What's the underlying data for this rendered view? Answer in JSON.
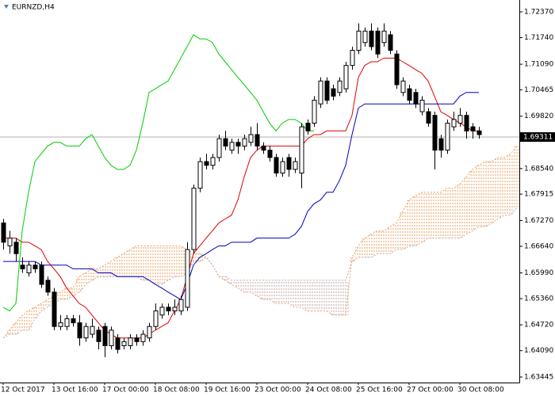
{
  "chart_data": {
    "type": "candlestick",
    "title": "EURNZD,H4",
    "categories": [
      "12 Oct 2017",
      null,
      null,
      null,
      null,
      null,
      null,
      null,
      "13 Oct 16:00",
      null,
      null,
      null,
      null,
      null,
      null,
      null,
      "17 Oct 00:00",
      null,
      null,
      null,
      null,
      null,
      null,
      null,
      "18 Oct 08:00",
      null,
      null,
      null,
      null,
      null,
      null,
      null,
      "19 Oct 16:00",
      null,
      null,
      null,
      null,
      null,
      null,
      null,
      "23 Oct 00:00",
      null,
      null,
      null,
      null,
      null,
      null,
      null,
      "24 Oct 08:00",
      null,
      null,
      null,
      null,
      null,
      null,
      null,
      "25 Oct 16:00",
      null,
      null,
      null,
      null,
      null,
      null,
      null,
      "27 Oct 00:00",
      null,
      null,
      null,
      null,
      null,
      null,
      null,
      "30 Oct 08:00",
      null,
      null,
      null,
      null,
      null,
      null,
      null,
      null,
      null
    ],
    "open": [
      1.6721,
      1.6665,
      1.6674,
      1.6618,
      1.6599,
      1.6618,
      1.6618,
      1.6581,
      1.6552,
      1.6468,
      1.6468,
      1.6487,
      1.6477,
      1.644,
      1.6449,
      1.6459,
      1.6468,
      1.6421,
      1.644,
      1.6421,
      1.6421,
      1.644,
      1.6431,
      1.644,
      1.6468,
      1.6496,
      1.6515,
      1.6506,
      1.6506,
      1.6515,
      1.6656,
      1.6806,
      1.6871,
      1.6862,
      1.6881,
      1.6927,
      1.6899,
      1.6918,
      1.6909,
      1.6918,
      1.6937,
      1.6909,
      1.6899,
      1.6881,
      1.6843,
      1.6881,
      1.6852,
      1.6843,
      1.6965,
      1.6965,
      1.7012,
      1.7068,
      1.7049,
      1.704,
      1.7049,
      1.7106,
      1.7143,
      1.7162,
      1.719,
      1.719,
      1.7162,
      1.7181,
      1.7134,
      1.704,
      1.7049,
      1.704,
      1.6993,
      1.6993,
      1.6984,
      1.6927,
      1.6899,
      1.6956,
      1.6965,
      1.6984,
      1.6956,
      1.6946,
      null,
      null,
      null,
      null,
      null,
      null
    ],
    "high": [
      1.6731,
      1.6702,
      1.6684,
      1.6637,
      1.6627,
      1.6627,
      1.6627,
      1.659,
      1.6562,
      1.6496,
      1.6496,
      1.6496,
      1.6496,
      1.6477,
      1.6487,
      1.6468,
      1.6477,
      1.6468,
      1.6449,
      1.644,
      1.6449,
      1.6449,
      1.6459,
      1.6477,
      1.6524,
      1.6524,
      1.6524,
      1.6534,
      1.6543,
      1.6674,
      1.6815,
      1.6881,
      1.689,
      1.689,
      1.6937,
      1.6946,
      1.6927,
      1.6927,
      1.6937,
      1.6956,
      1.6965,
      1.6918,
      1.6909,
      1.689,
      1.6881,
      1.689,
      1.6881,
      1.6965,
      1.6974,
      1.7031,
      1.7077,
      1.7077,
      1.7059,
      1.7077,
      1.7115,
      1.7152,
      1.7209,
      1.7199,
      1.7209,
      1.7199,
      1.7209,
      1.719,
      1.7143,
      1.7077,
      1.7059,
      1.7049,
      1.7031,
      1.7002,
      1.6993,
      1.6937,
      1.6974,
      1.6993,
      1.7002,
      1.6993,
      1.6965,
      1.6956,
      null,
      null,
      null,
      null,
      null,
      null
    ],
    "low": [
      1.6656,
      1.6646,
      1.6627,
      1.6599,
      1.659,
      1.6599,
      1.6562,
      1.6543,
      1.6459,
      1.6459,
      1.6459,
      1.6468,
      1.6421,
      1.6431,
      1.644,
      1.6412,
      1.6393,
      1.6412,
      1.6402,
      1.6412,
      1.6412,
      1.6421,
      1.6421,
      1.6431,
      1.6459,
      1.6487,
      1.6496,
      1.6496,
      1.6496,
      1.6506,
      1.6646,
      1.6796,
      1.6852,
      1.6852,
      1.6871,
      1.6899,
      1.689,
      1.689,
      1.6899,
      1.6909,
      1.6899,
      1.689,
      1.6871,
      1.6834,
      1.6834,
      1.6834,
      1.6843,
      1.6806,
      1.6937,
      1.6956,
      1.7002,
      1.7012,
      1.7021,
      1.7031,
      1.704,
      1.7096,
      1.7134,
      1.7152,
      1.7143,
      1.7124,
      1.7152,
      1.7134,
      1.7049,
      1.7031,
      1.7012,
      1.7002,
      1.6984,
      1.6956,
      1.6852,
      1.6881,
      1.689,
      1.6946,
      1.6956,
      1.6927,
      1.6927,
      1.6927,
      null,
      null,
      null,
      null,
      null,
      null
    ],
    "close": [
      1.6674,
      1.6684,
      1.6646,
      1.6609,
      1.6618,
      1.6609,
      1.6571,
      1.6552,
      1.6468,
      1.6477,
      1.6487,
      1.6477,
      1.644,
      1.6468,
      1.6468,
      1.6431,
      1.6421,
      1.6459,
      1.6412,
      1.6431,
      1.644,
      1.6431,
      1.6449,
      1.6468,
      1.6506,
      1.6515,
      1.6506,
      1.6515,
      1.6534,
      1.6656,
      1.6806,
      1.6871,
      1.6862,
      1.6881,
      1.6927,
      1.6909,
      1.6918,
      1.6909,
      1.6927,
      1.6937,
      1.6909,
      1.6899,
      1.6881,
      1.6843,
      1.6871,
      1.6852,
      1.6871,
      1.6956,
      1.6946,
      1.7021,
      1.7068,
      1.7021,
      1.7031,
      1.7068,
      1.7106,
      1.7143,
      1.719,
      1.719,
      1.7152,
      1.7134,
      1.719,
      1.7143,
      1.7059,
      1.7068,
      1.7021,
      1.7012,
      1.7021,
      1.6965,
      1.6899,
      1.6899,
      1.6965,
      1.6974,
      1.6984,
      1.6946,
      1.6946,
      1.6937,
      null,
      null,
      null,
      null,
      null,
      null
    ],
    "up_color": "#ffffff",
    "down_color": "#000000",
    "edge_color": "#000000",
    "lines": [
      {
        "color": "#e00000",
        "values": [
          1.6684,
          1.6684,
          1.6684,
          1.6674,
          1.6674,
          1.6665,
          1.6656,
          1.6627,
          1.6609,
          1.659,
          1.6562,
          1.6543,
          1.6524,
          1.6515,
          1.6496,
          1.6477,
          1.6459,
          1.6449,
          1.644,
          1.644,
          1.644,
          1.644,
          1.644,
          1.6449,
          1.6459,
          1.6468,
          1.6477,
          1.6506,
          1.6534,
          1.659,
          1.6646,
          1.6665,
          1.6684,
          1.6702,
          1.6721,
          1.6731,
          1.674,
          1.6777,
          1.6834,
          1.6881,
          1.6899,
          1.6909,
          1.6909,
          1.6909,
          1.6909,
          1.6909,
          1.6909,
          1.6909,
          1.6927,
          1.6937,
          1.6937,
          1.6946,
          1.6946,
          1.6946,
          1.6946,
          1.6984,
          1.7077,
          1.7106,
          1.7115,
          1.7115,
          1.7124,
          1.7124,
          1.7124,
          1.7115,
          1.7106,
          1.7096,
          1.7087,
          1.7068,
          1.7031,
          1.6993,
          1.6984,
          1.6974,
          1.6965,
          1.6956,
          1.6946,
          1.6946,
          null,
          null,
          null,
          null,
          null,
          null
        ]
      },
      {
        "color": "#0000c0",
        "values": [
          1.6627,
          1.6627,
          1.6627,
          1.6627,
          1.6627,
          1.6627,
          1.6618,
          1.6618,
          1.6618,
          1.6618,
          1.6618,
          1.6609,
          1.6609,
          1.6609,
          1.6609,
          1.6599,
          1.6599,
          1.6599,
          1.659,
          1.659,
          1.659,
          1.659,
          1.659,
          1.6581,
          1.6571,
          1.6562,
          1.6552,
          1.6543,
          1.6534,
          1.6571,
          1.6618,
          1.6637,
          1.6646,
          1.6656,
          1.6665,
          1.6665,
          1.6674,
          1.6674,
          1.6674,
          1.6674,
          1.6684,
          1.6684,
          1.6684,
          1.6684,
          1.6684,
          1.6684,
          1.6693,
          1.6712,
          1.6749,
          1.6768,
          1.6777,
          1.6796,
          1.6796,
          1.6824,
          1.6862,
          1.6937,
          1.7002,
          1.7012,
          1.7012,
          1.7012,
          1.7012,
          1.7012,
          1.7012,
          1.7012,
          1.7012,
          1.7012,
          1.7012,
          1.7012,
          1.7012,
          1.7012,
          1.7012,
          1.7012,
          1.7031,
          1.704,
          1.704,
          1.704,
          null,
          null,
          null,
          null,
          null,
          null
        ]
      },
      {
        "color": "#00cc00",
        "values": [
          1.6515,
          1.6506,
          1.6524,
          1.6702,
          1.6796,
          1.6871,
          1.689,
          1.6909,
          1.6918,
          1.6918,
          1.6909,
          1.6909,
          1.6909,
          1.6927,
          1.6937,
          1.6909,
          1.6881,
          1.6862,
          1.6852,
          1.6852,
          1.6862,
          1.6899,
          1.6965,
          1.704,
          1.7049,
          1.7059,
          1.7068,
          1.7096,
          1.7124,
          1.7152,
          1.7181,
          1.7171,
          1.7171,
          1.7162,
          1.7134,
          1.7115,
          1.7096,
          1.7077,
          1.7059,
          1.704,
          1.7021,
          1.6993,
          1.6965,
          1.6946,
          1.6965,
          1.6974,
          1.6974,
          1.6965,
          1.6946,
          1.6946,
          null,
          null,
          null,
          null,
          null,
          null,
          null,
          null,
          null,
          null,
          null,
          null,
          null,
          null,
          null,
          null,
          null,
          null,
          null,
          null,
          null,
          null,
          null,
          null,
          null,
          null,
          null,
          null,
          null,
          null,
          null,
          null
        ]
      }
    ],
    "cloud": {
      "up_color": "#e8a060",
      "down_color": "#c4a4a4",
      "span_a": [
        1.644,
        1.6459,
        1.6477,
        1.6496,
        1.6506,
        1.6515,
        1.6524,
        1.6534,
        1.6543,
        1.6552,
        1.6562,
        1.6562,
        1.659,
        1.6599,
        1.6609,
        1.6609,
        1.6618,
        1.6627,
        1.6637,
        1.6646,
        1.6656,
        1.6665,
        1.6665,
        1.6665,
        1.6665,
        1.6665,
        1.6665,
        1.6665,
        1.6665,
        1.6656,
        1.6646,
        1.6646,
        1.6637,
        1.6618,
        1.659,
        1.6581,
        1.6571,
        1.6562,
        1.6552,
        1.6552,
        1.6543,
        1.6534,
        1.6534,
        1.6524,
        1.6524,
        1.6524,
        1.6515,
        1.6515,
        1.6506,
        1.6506,
        1.6506,
        1.6506,
        1.6496,
        1.6496,
        1.6496,
        1.6637,
        1.6665,
        1.6684,
        1.6693,
        1.6702,
        1.6702,
        1.6712,
        1.6721,
        1.6749,
        1.6777,
        1.6787,
        1.6796,
        1.6796,
        1.6796,
        1.6796,
        1.6806,
        1.6806,
        1.6815,
        1.6834,
        1.6852,
        1.6862,
        1.6871,
        1.6871,
        1.6881,
        1.6881,
        1.689,
        1.6909
      ],
      "span_b": [
        1.644,
        1.6449,
        1.6449,
        1.6459,
        1.6459,
        1.6487,
        1.6506,
        1.6515,
        1.6524,
        1.6534,
        1.6534,
        1.6543,
        1.6552,
        1.6571,
        1.6581,
        1.659,
        1.659,
        1.659,
        1.659,
        1.659,
        1.659,
        1.659,
        1.6581,
        1.6581,
        1.6571,
        1.6571,
        1.6581,
        1.659,
        1.659,
        1.6599,
        1.6627,
        1.6627,
        1.6637,
        1.6618,
        1.659,
        1.659,
        1.6581,
        1.6581,
        1.6581,
        1.6581,
        1.6581,
        1.6581,
        1.6581,
        1.6581,
        1.6581,
        1.6581,
        1.6581,
        1.6581,
        1.6581,
        1.6581,
        1.6581,
        1.6581,
        1.6581,
        1.6581,
        1.6581,
        1.6627,
        1.6637,
        1.6637,
        1.6637,
        1.6646,
        1.6646,
        1.6646,
        1.6656,
        1.6656,
        1.6665,
        1.6665,
        1.6674,
        1.6684,
        1.6684,
        1.6684,
        1.6684,
        1.6684,
        1.6684,
        1.6693,
        1.6702,
        1.6712,
        1.6712,
        1.6721,
        1.6731,
        1.674,
        1.674,
        1.6759
      ]
    },
    "last_price": 1.69311,
    "ylim": [
      1.6331,
      1.7266
    ],
    "yticks": [
      {
        "value": 1.7237,
        "label": "1.72370"
      },
      {
        "value": 1.7174,
        "label": "1.71740"
      },
      {
        "value": 1.7109,
        "label": "1.71090"
      },
      1.70465,
      {
        "value": 1.6982,
        "label": "1.69820"
      },
      {
        "value": 1.6854,
        "label": "1.68540"
      },
      1.67915,
      {
        "value": 1.6727,
        "label": "1.67270"
      },
      {
        "value": 1.6664,
        "label": "1.66640"
      },
      {
        "value": 1.6599,
        "label": "1.65990"
      },
      {
        "value": 1.6536,
        "label": "1.65360"
      },
      {
        "value": 1.6472,
        "label": "1.64720"
      },
      {
        "value": 1.6409,
        "label": "1.64090"
      },
      1.63445
    ],
    "grid": false
  }
}
